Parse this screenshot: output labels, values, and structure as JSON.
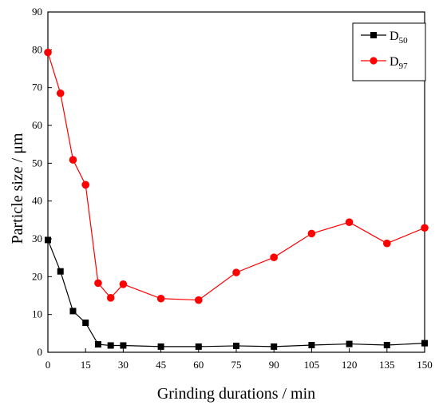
{
  "chart_data": {
    "type": "line",
    "xlabel": "Grinding durations / min",
    "ylabel": "Particle size / μm",
    "xlim": [
      0,
      150
    ],
    "ylim": [
      0,
      90
    ],
    "x_ticks": [
      0,
      15,
      30,
      45,
      60,
      75,
      90,
      105,
      120,
      135,
      150
    ],
    "y_ticks": [
      0,
      10,
      20,
      30,
      40,
      50,
      60,
      70,
      80,
      90
    ],
    "grid": false,
    "legend_position": "top-right",
    "series": [
      {
        "name": "D50",
        "legend_main": "D",
        "legend_sub": "50",
        "color": "#000000",
        "marker": "square",
        "x": [
          0,
          5,
          10,
          15,
          20,
          25,
          30,
          45,
          60,
          75,
          90,
          105,
          120,
          135,
          150
        ],
        "y": [
          29.7,
          21.4,
          10.9,
          7.8,
          2.1,
          1.8,
          1.8,
          1.5,
          1.5,
          1.7,
          1.5,
          1.9,
          2.2,
          1.9,
          2.4
        ]
      },
      {
        "name": "D97",
        "legend_main": "D",
        "legend_sub": "97",
        "color": "#ff0000",
        "marker": "circle",
        "x": [
          0,
          5,
          10,
          15,
          20,
          25,
          30,
          45,
          60,
          75,
          90,
          105,
          120,
          135,
          150
        ],
        "y": [
          79.3,
          68.5,
          50.9,
          44.3,
          18.3,
          14.4,
          18.0,
          14.2,
          13.8,
          21.1,
          25.1,
          31.4,
          34.4,
          28.8,
          32.9
        ]
      }
    ]
  }
}
